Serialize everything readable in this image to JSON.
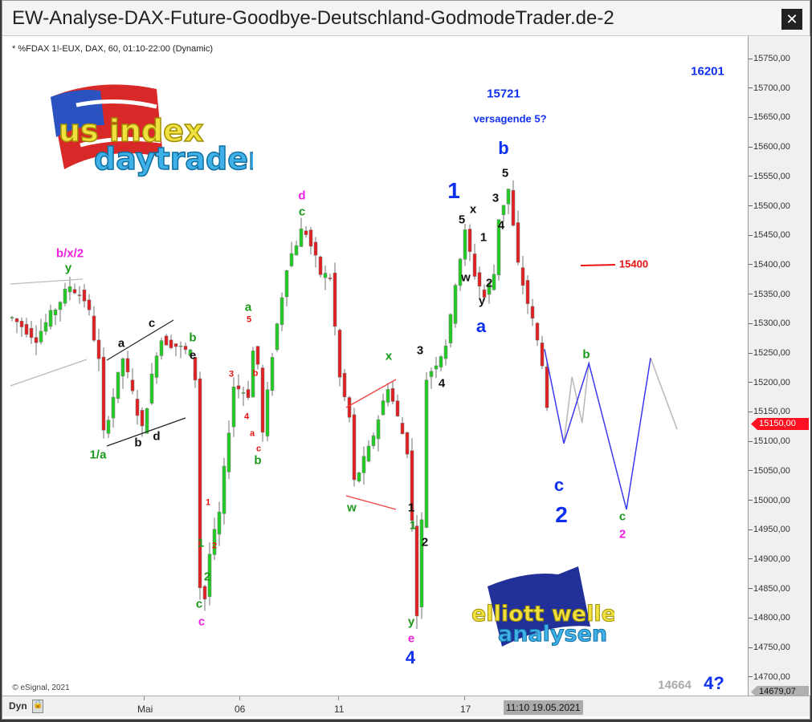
{
  "window": {
    "title": "EW-Analyse-DAX-Future-Goodbye-Deutschland-GodmodeTrader.de-2",
    "close_icon": "close-icon"
  },
  "chart_header": "* %FDAX 1!-EUX, DAX, 60, 01:10-22:00 (Dynamic)",
  "copyright": "© eSignal, 2021",
  "logos": {
    "top_left": "us index daytrader",
    "bottom": "elliott wellen analysen"
  },
  "colors": {
    "up": "#22cc22",
    "down": "#e02020",
    "wick": "#888888",
    "projection": "#3a3af0",
    "projection_alt": "#b8b8b8",
    "last_price": "#ff1020"
  },
  "price_axis": {
    "ticks": [
      "15750,00",
      "15700,00",
      "15650,00",
      "15600,00",
      "15550,00",
      "15500,00",
      "15450,00",
      "15400,00",
      "15350,00",
      "15300,00",
      "15250,00",
      "15200,00",
      "15150,00",
      "15100,00",
      "15050,00",
      "15000,00",
      "14950,00",
      "14900,00",
      "14850,00",
      "14800,00",
      "14750,00",
      "14700,00"
    ],
    "last_price": "15150,00",
    "cursor_price": "14679,07"
  },
  "time_axis": {
    "mode": "Dyn",
    "labels": [
      "Mai",
      "06",
      "11",
      "17"
    ],
    "cursor_time": "11:10 19.05.2021"
  },
  "chart_data": {
    "type": "candlestick",
    "title": "* %FDAX 1!-EUX, DAX, 60, 01:10-22:00 (Dynamic)",
    "ylim": [
      14680,
      15780
    ],
    "price_path": {
      "bar": [
        0,
        5,
        12,
        15.5,
        18,
        19,
        23,
        27,
        30.5,
        34,
        37,
        38,
        39,
        40,
        41,
        43,
        46,
        49,
        50.5,
        52,
        54,
        57,
        60.5,
        64,
        66,
        68,
        70,
        71,
        74,
        76,
        78,
        80.5,
        82,
        83,
        84,
        85,
        86,
        89,
        90.5,
        92,
        94,
        96,
        98,
        100,
        101,
        103,
        105,
        108,
        110,
        111
      ],
      "price": [
        15311,
        15277,
        15366,
        15339,
        15237,
        15114,
        15243,
        15121,
        15277,
        15264,
        15250,
        15209,
        14855,
        14835,
        14910,
        14978,
        15196,
        15182,
        15291,
        15114,
        15250,
        15400,
        15468,
        15386,
        15380,
        15209,
        15141,
        15032,
        15087,
        15141,
        15196,
        15128,
        15087,
        14964,
        14814,
        14964,
        15209,
        15250,
        15277,
        15373,
        15455,
        15386,
        15346,
        15386,
        15482,
        15529,
        15400,
        15305,
        15237,
        15150
      ]
    },
    "projection_main": {
      "bar": [
        110.5,
        114.5,
        119.7,
        127.5,
        132.5
      ],
      "price": [
        15258,
        15098,
        15234,
        14986,
        15243
      ]
    },
    "projection_alt": [
      {
        "bar": [
          114.5,
          116.2,
          118.3,
          119.7
        ],
        "price": [
          15098,
          15211,
          15133,
          15234
        ]
      },
      {
        "bar": [
          132.5,
          138
        ],
        "price": [
          15243,
          15122
        ]
      }
    ],
    "level_line": {
      "price": 15400,
      "label": "15400"
    }
  },
  "labels": [
    "b/x/2",
    "y",
    "1/a",
    "a",
    "c",
    "b",
    "d",
    "b",
    "e",
    "a",
    "5",
    "3",
    "b",
    "4",
    "a",
    "c",
    "b",
    "1",
    "2",
    "1",
    "2",
    "c",
    "c",
    "d",
    "c",
    "x",
    "w",
    "3",
    "4",
    "1",
    "1",
    "2",
    "y",
    "e",
    "4",
    "1",
    "5",
    "x",
    "1",
    "w",
    "2",
    "y",
    "a",
    "3",
    "4",
    "5",
    "b",
    "15721",
    "versagende 5?",
    "16201",
    "15400",
    "b",
    "c",
    "2",
    "c",
    "2",
    "14664",
    "4?"
  ]
}
